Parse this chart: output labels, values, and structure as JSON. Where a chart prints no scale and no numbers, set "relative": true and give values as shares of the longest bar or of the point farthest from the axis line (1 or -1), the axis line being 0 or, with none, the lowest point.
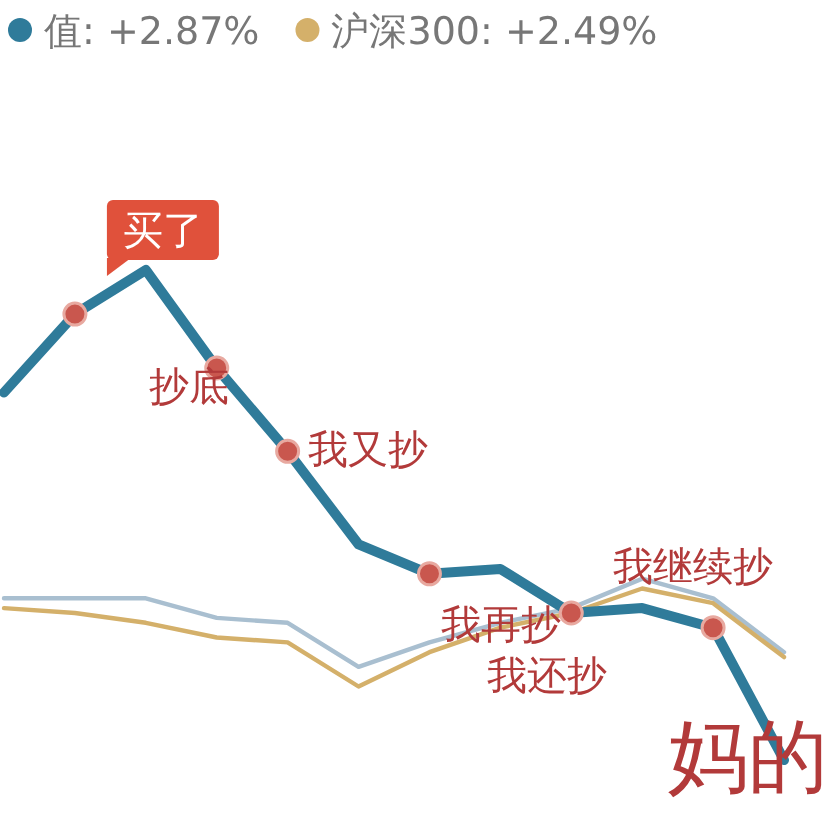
{
  "chart_data": {
    "type": "line",
    "relative": true,
    "legend": "top",
    "categories": [
      null,
      null,
      null,
      null,
      null,
      null,
      null,
      null,
      null,
      null,
      null,
      null
    ],
    "series": [
      {
        "name": "值: +2.87%",
        "color": "#2f7b9a",
        "values": [
          0.75,
          0.91,
          1,
          0.8,
          0.63,
          0.44,
          0.38,
          0.39,
          0.3,
          0.31,
          0.27,
          0
        ]
      },
      {
        "color": "#a9bfd0",
        "values": [
          0.33,
          0.33,
          0.33,
          0.29,
          0.28,
          0.19,
          0.24,
          0.28,
          0.31,
          0.37,
          0.33,
          0.22
        ]
      },
      {
        "name": "沪深300: +2.49%",
        "color": "#d4b06a",
        "values": [
          0.31,
          0.3,
          0.28,
          0.25,
          0.24,
          0.15,
          0.22,
          0.27,
          0.3,
          0.35,
          0.32,
          0.21
        ]
      }
    ],
    "annotations": [
      "买了",
      "抄底",
      "我又抄",
      "我再抄",
      "我还抄",
      "我继续抄",
      "妈的"
    ]
  }
}
